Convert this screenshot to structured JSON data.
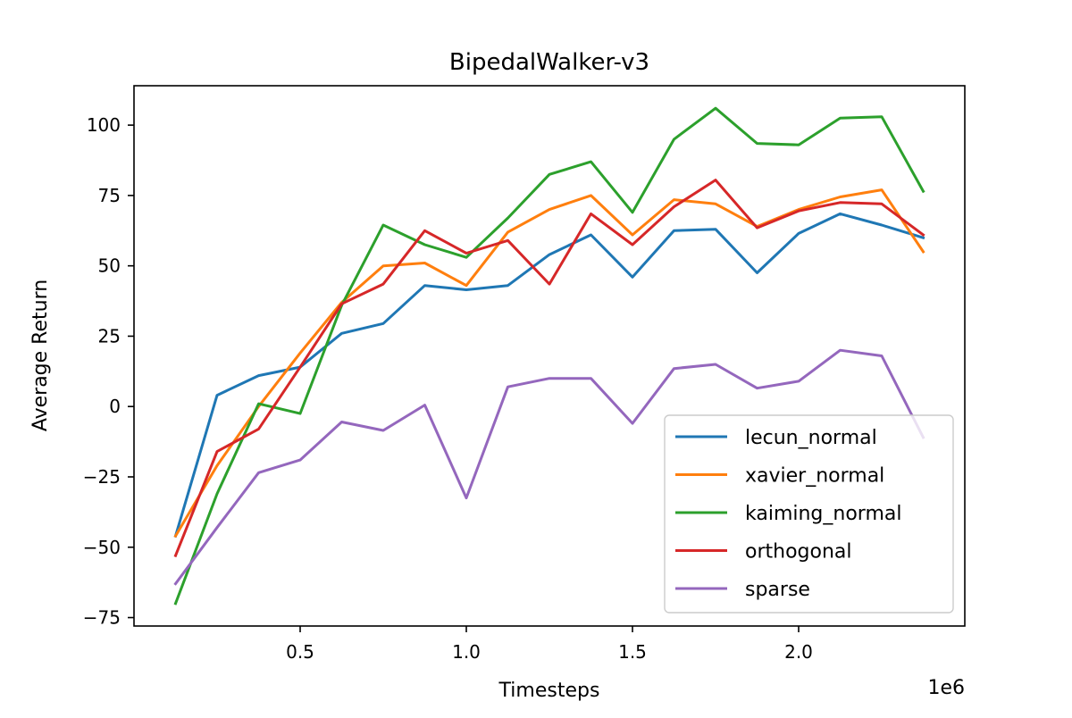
{
  "chart_data": {
    "type": "line",
    "title": "BipedalWalker-v3",
    "xlabel": "Timesteps",
    "ylabel": "Average Return",
    "x_multiplier_label": "1e6",
    "xlim": [
      0.0,
      2.5
    ],
    "ylim": [
      -78,
      114
    ],
    "xticks": [
      0.5,
      1.0,
      1.5,
      2.0
    ],
    "xtick_labels": [
      "0.5",
      "1.0",
      "1.5",
      "2.0"
    ],
    "yticks": [
      -75,
      -50,
      -25,
      0,
      25,
      50,
      75,
      100
    ],
    "ytick_labels": [
      "−75",
      "−50",
      "−25",
      "0",
      "25",
      "50",
      "75",
      "100"
    ],
    "grid": false,
    "legend_position": "lower-right",
    "x": [
      0.125,
      0.25,
      0.375,
      0.5,
      0.625,
      0.75,
      0.875,
      1.0,
      1.125,
      1.25,
      1.375,
      1.5,
      1.625,
      1.75,
      1.875,
      2.0,
      2.125,
      2.25,
      2.375
    ],
    "series": [
      {
        "name": "lecun_normal",
        "color": "#1f77b4",
        "values": [
          -46,
          4,
          11,
          14,
          26,
          29.5,
          43,
          41.5,
          43,
          54,
          61,
          46,
          62.5,
          63,
          47.5,
          61.5,
          68.5,
          64.5,
          60
        ]
      },
      {
        "name": "xavier_normal",
        "color": "#ff7f0e",
        "values": [
          -46,
          -21,
          0,
          19,
          37,
          50,
          51,
          43,
          62,
          70,
          75,
          61,
          73.5,
          72,
          64,
          70,
          74.5,
          77,
          55
        ]
      },
      {
        "name": "kaiming_normal",
        "color": "#2ca02c",
        "values": [
          -70,
          -31,
          1,
          -2.5,
          36,
          64.5,
          57.5,
          53,
          67,
          82.5,
          87,
          69,
          95,
          106,
          93.5,
          93,
          102.5,
          103,
          76.5
        ]
      },
      {
        "name": "orthogonal",
        "color": "#d62728",
        "values": [
          -53,
          -16,
          -8,
          14,
          36.5,
          43.5,
          62.5,
          54.5,
          59,
          43.5,
          68.5,
          57.5,
          71,
          80.5,
          63.5,
          69.5,
          72.5,
          72,
          61
        ]
      },
      {
        "name": "sparse",
        "color": "#9467bd",
        "values": [
          -63,
          -43,
          -23.5,
          -19,
          -5.5,
          -8.5,
          0.5,
          -32.5,
          7,
          10,
          10,
          -6,
          13.5,
          15,
          6.5,
          9,
          20,
          18,
          -11
        ]
      }
    ]
  }
}
